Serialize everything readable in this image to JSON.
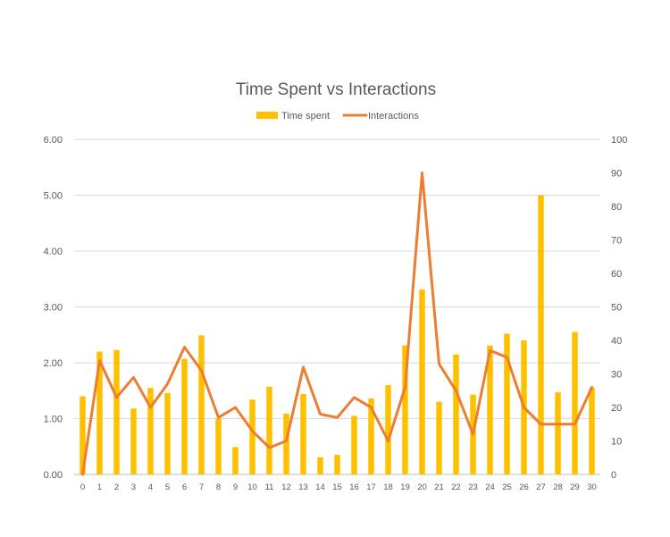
{
  "chart_data": {
    "type": "bar",
    "title": "Time Spent vs Interactions",
    "categories": [
      "0",
      "1",
      "2",
      "3",
      "4",
      "5",
      "6",
      "7",
      "8",
      "9",
      "10",
      "11",
      "12",
      "13",
      "14",
      "15",
      "16",
      "17",
      "18",
      "19",
      "20",
      "21",
      "22",
      "23",
      "24",
      "25",
      "26",
      "27",
      "28",
      "29",
      "30"
    ],
    "series": [
      {
        "name": "Time spent",
        "type": "bar",
        "axis": "left",
        "color": "#FFC000",
        "values": [
          1.4,
          2.2,
          2.23,
          1.18,
          1.55,
          1.46,
          2.07,
          2.49,
          1.0,
          0.49,
          1.34,
          1.57,
          1.09,
          1.44,
          0.31,
          0.35,
          1.05,
          1.36,
          1.6,
          2.31,
          3.31,
          1.3,
          2.15,
          1.43,
          2.31,
          2.52,
          2.4,
          5.0,
          1.47,
          2.55,
          1.55
        ]
      },
      {
        "name": "Interactions",
        "type": "line",
        "axis": "right",
        "color": "#ED7D31",
        "values": [
          0,
          34,
          23,
          29,
          20,
          27,
          38,
          31,
          17,
          20,
          13,
          8,
          10,
          32,
          18,
          17,
          23,
          20,
          10,
          26,
          90,
          33,
          25,
          12,
          37,
          35,
          20,
          15,
          15,
          15,
          26
        ]
      }
    ],
    "y_left": {
      "min": 0,
      "max": 6,
      "ticks": [
        "0.00",
        "1.00",
        "2.00",
        "3.00",
        "4.00",
        "5.00",
        "6.00"
      ]
    },
    "y_right": {
      "min": 0,
      "max": 100,
      "ticks": [
        "0",
        "10",
        "20",
        "30",
        "40",
        "50",
        "60",
        "70",
        "80",
        "90",
        "100"
      ]
    },
    "legend": "top",
    "grid": true
  }
}
